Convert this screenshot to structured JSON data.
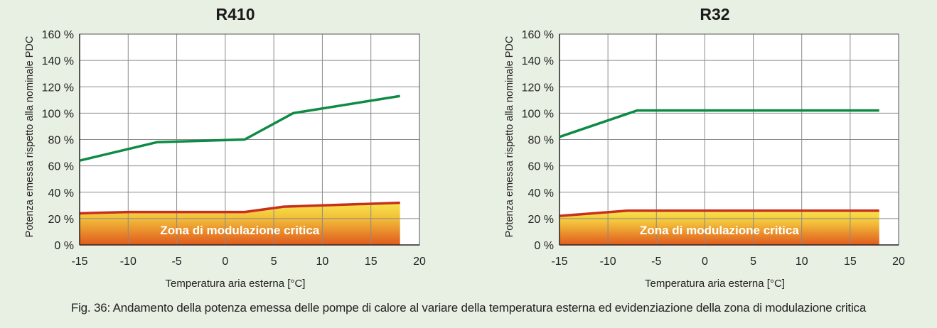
{
  "caption": "Fig. 36: Andamento della potenza emessa delle pompe di calore al variare della temperatura esterna ed evidenziazione della zona di modulazione critica",
  "colors": {
    "curve": "#0f8a45",
    "zone_border": "#c8301e",
    "zone_top": "#f6e54a",
    "zone_bottom": "#e05a1e",
    "grid": "#8a8a8a",
    "background": "#e8efe3",
    "plot_bg": "#ffffff"
  },
  "chart_data": [
    {
      "type": "line",
      "title": "R410",
      "xlabel": "Temperatura aria esterna [°C]",
      "ylabel": "Potenza emessa rispetto alla nominale PDC",
      "xlim": [
        -15,
        20
      ],
      "ylim": [
        0,
        160
      ],
      "x_ticks": [
        "-15",
        "-10",
        "-5",
        "0",
        "5",
        "10",
        "15",
        "20"
      ],
      "y_ticks": [
        "0 %",
        "20 %",
        "40 %",
        "60 %",
        "80 %",
        "100 %",
        "120 %",
        "140 %",
        "160 %"
      ],
      "grid": true,
      "series": [
        {
          "x": [
            -15,
            -7,
            2,
            7,
            18
          ],
          "y": [
            64,
            78,
            80,
            100,
            113
          ]
        }
      ],
      "zone": {
        "label": "Zona di modulazione critica",
        "x": [
          -15,
          -10,
          2,
          6,
          18
        ],
        "y": [
          24,
          25,
          25,
          29,
          32
        ]
      }
    },
    {
      "type": "line",
      "title": "R32",
      "xlabel": "Temperatura aria esterna [°C]",
      "ylabel": "Potenza emessa rispetto alla nominale PDC",
      "xlim": [
        -15,
        20
      ],
      "ylim": [
        0,
        160
      ],
      "x_ticks": [
        "-15",
        "-10",
        "-5",
        "0",
        "5",
        "10",
        "15",
        "20"
      ],
      "y_ticks": [
        "0 %",
        "20 %",
        "40 %",
        "60 %",
        "80 %",
        "100 %",
        "120 %",
        "140 %",
        "160 %"
      ],
      "grid": true,
      "series": [
        {
          "x": [
            -15,
            -7,
            18
          ],
          "y": [
            82,
            102,
            102
          ]
        }
      ],
      "zone": {
        "label": "Zona di modulazione critica",
        "x": [
          -15,
          -8,
          18
        ],
        "y": [
          22,
          26,
          26
        ]
      }
    }
  ]
}
